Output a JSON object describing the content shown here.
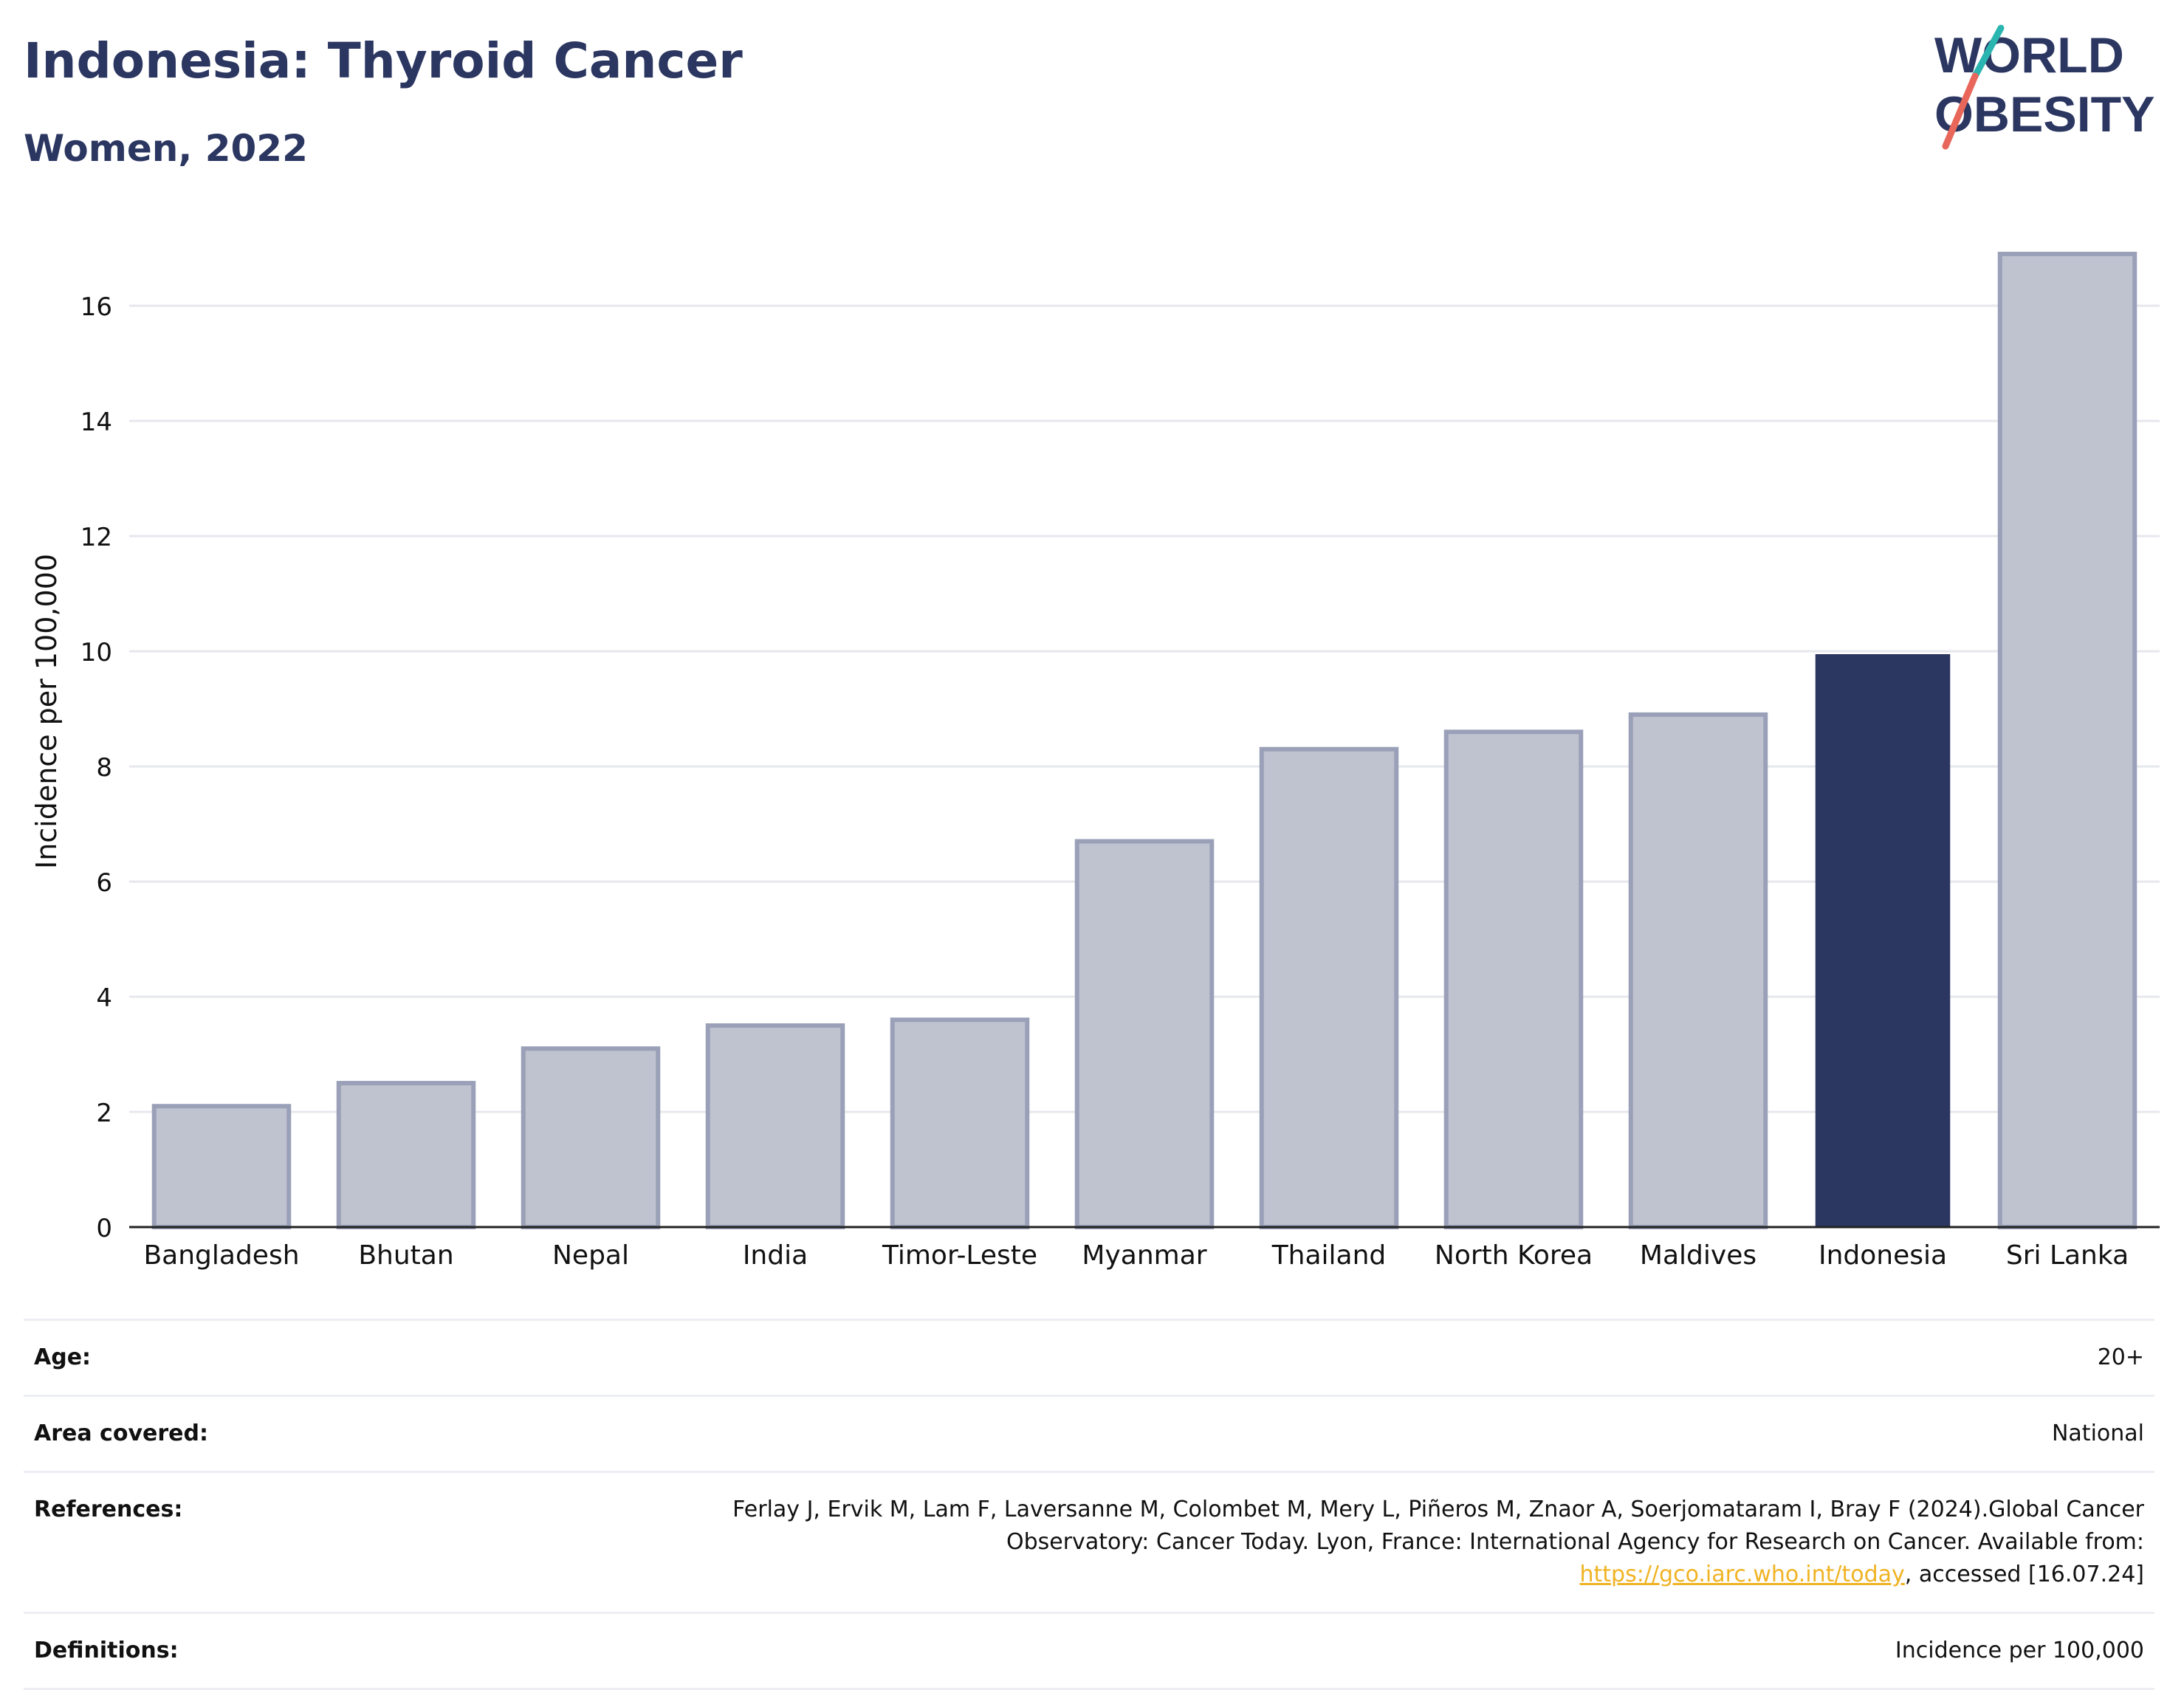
{
  "header": {
    "title": "Indonesia: Thyroid Cancer",
    "subtitle": "Women, 2022",
    "logo_line1": "WORLD",
    "logo_line2": "OBESITY"
  },
  "colors": {
    "title": "#2b3661",
    "highlight_bar": "#2b3661",
    "other_bar_fill": "#bfc3d0",
    "other_bar_stroke": "#9aa0b8",
    "link": "#f0b323",
    "logo_teal": "#2bb5b0",
    "logo_coral": "#e8675a"
  },
  "chart_data": {
    "type": "bar",
    "ylabel": "Incidence per 100,000",
    "xlabel": "",
    "ylim": [
      0,
      17.4
    ],
    "yticks": [
      0,
      2,
      4,
      6,
      8,
      10,
      12,
      14,
      16
    ],
    "grid": true,
    "categories": [
      "Bangladesh",
      "Bhutan",
      "Nepal",
      "India",
      "Timor-Leste",
      "Myanmar",
      "Thailand",
      "North Korea",
      "Maldives",
      "Indonesia",
      "Sri Lanka"
    ],
    "values": [
      2.1,
      2.5,
      3.1,
      3.5,
      3.6,
      6.7,
      8.3,
      8.6,
      8.9,
      9.95,
      16.9
    ],
    "highlight": "Indonesia"
  },
  "meta": {
    "age_label": "Age:",
    "age_value": "20+",
    "area_label": "Area covered:",
    "area_value": "National",
    "references_label": "References:",
    "references_text": "Ferlay J, Ervik M, Lam F, Laversanne M, Colombet M, Mery L, Piñeros M, Znaor A, Soerjomataram I, Bray F (2024).Global Cancer Observatory: Cancer Today. Lyon, France: International Agency for Research on Cancer. Available from: ",
    "references_link": "https://gco.iarc.who.int/today",
    "references_tail": ", accessed [16.07.24]",
    "definitions_label": "Definitions:",
    "definitions_value": "Incidence per 100,000"
  }
}
